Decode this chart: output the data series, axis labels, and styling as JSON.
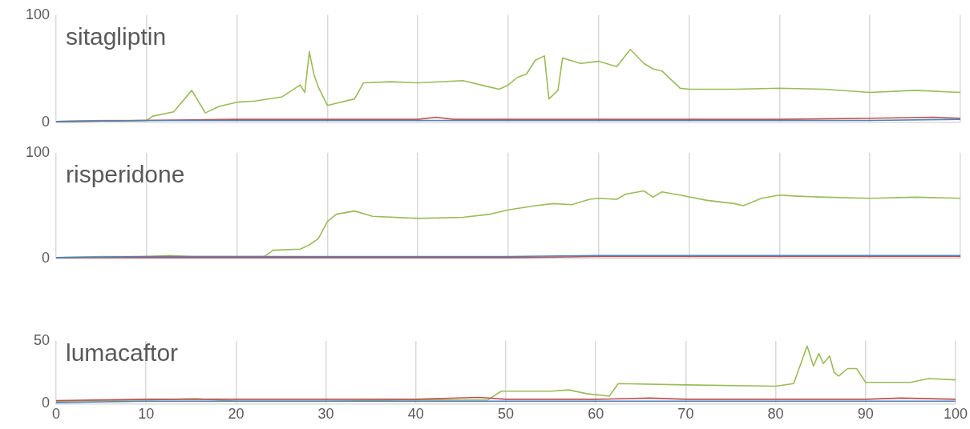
{
  "chart_data": [
    {
      "type": "line",
      "title": "sitagliptin",
      "xlim": [
        0,
        100
      ],
      "xticks": [
        0,
        10,
        20,
        30,
        40,
        50,
        60,
        70,
        80,
        90,
        100
      ],
      "ylim": [
        0,
        100
      ],
      "yticks": [
        0,
        100
      ],
      "grid": "x",
      "legend": false,
      "tick_labels": "y",
      "marker": "none",
      "series": [
        {
          "color": "#4f81bd",
          "x": [
            0,
            10,
            20,
            30,
            40,
            50,
            60,
            70,
            80,
            90,
            100
          ],
          "values": [
            1,
            2,
            2,
            2,
            2,
            2,
            2,
            2,
            2,
            2,
            3
          ]
        },
        {
          "color": "#c0504d",
          "x": [
            0,
            10,
            20,
            30,
            40,
            42,
            44,
            50,
            60,
            70,
            80,
            90,
            97,
            100
          ],
          "values": [
            1,
            2,
            3,
            3,
            3,
            5,
            3,
            3,
            3,
            3,
            3,
            4,
            5,
            4
          ]
        },
        {
          "color": "#9bbb59",
          "x": [
            0,
            5,
            10,
            10.7,
            13,
            15,
            16.5,
            18,
            20,
            22,
            25,
            27,
            27.5,
            28,
            28.5,
            29,
            30,
            31,
            33,
            34,
            37,
            40,
            45,
            48,
            49,
            50,
            51,
            52,
            53,
            54,
            54.5,
            55.5,
            56,
            58,
            60,
            62,
            63.5,
            65,
            66,
            67,
            68,
            69,
            70,
            75,
            80,
            85,
            90,
            95,
            100
          ],
          "values": [
            1,
            2,
            2,
            6,
            10,
            30,
            9,
            15,
            19,
            20,
            24,
            35,
            28,
            66,
            45,
            33,
            16,
            18,
            22,
            37,
            38,
            37,
            39,
            33,
            31,
            35,
            42,
            45,
            58,
            62,
            22,
            30,
            60,
            55,
            57,
            52,
            68,
            55,
            50,
            48,
            40,
            32,
            31,
            31,
            32,
            31,
            28,
            30,
            28
          ]
        }
      ]
    },
    {
      "type": "line",
      "title": "risperidone",
      "xlim": [
        0,
        100
      ],
      "xticks": [
        0,
        10,
        20,
        30,
        40,
        50,
        60,
        70,
        80,
        90,
        100
      ],
      "ylim": [
        0,
        100
      ],
      "yticks": [
        0,
        100
      ],
      "grid": "x",
      "legend": false,
      "tick_labels": "y",
      "marker": "none",
      "series": [
        {
          "color": "#4f81bd",
          "x": [
            0,
            10,
            20,
            30,
            40,
            50,
            60,
            70,
            80,
            90,
            100
          ],
          "values": [
            1,
            2,
            2,
            2,
            2,
            2,
            3,
            3,
            3,
            3,
            3
          ]
        },
        {
          "color": "#c0504d",
          "x": [
            0,
            10,
            20,
            30,
            40,
            50,
            60,
            70,
            80,
            90,
            100
          ],
          "values": [
            1,
            1,
            1,
            1,
            1,
            1,
            2,
            2,
            2,
            2,
            2
          ]
        },
        {
          "color": "#9bbb59",
          "x": [
            0,
            5,
            10,
            12.5,
            15,
            20,
            23,
            24,
            27,
            28,
            29,
            30,
            31,
            33,
            35,
            40,
            45,
            48,
            50,
            53,
            55,
            57,
            59,
            60,
            62,
            63,
            65,
            66,
            67,
            69,
            72,
            75,
            76,
            78,
            80,
            82,
            85,
            90,
            95,
            100
          ],
          "values": [
            1,
            2,
            2,
            3,
            2,
            2,
            2,
            8,
            9,
            13,
            19,
            35,
            42,
            45,
            40,
            38,
            39,
            42,
            46,
            50,
            52,
            51,
            56,
            57,
            56,
            61,
            64,
            58,
            63,
            60,
            55,
            52,
            50,
            57,
            60,
            59,
            58,
            57,
            58,
            57
          ]
        }
      ]
    },
    {
      "type": "line",
      "title": "lumacaftor",
      "xlim": [
        0,
        100
      ],
      "xticks": [
        0,
        10,
        20,
        30,
        40,
        50,
        60,
        70,
        80,
        90,
        100
      ],
      "ylim": [
        0,
        50
      ],
      "yticks": [
        0,
        50
      ],
      "grid": "x",
      "legend": false,
      "marker": "none",
      "series": [
        {
          "color": "#4f81bd",
          "x": [
            0,
            10,
            20,
            30,
            40,
            50,
            60,
            70,
            80,
            90,
            100
          ],
          "values": [
            1,
            2,
            2,
            2,
            2,
            2,
            2,
            2,
            2,
            2,
            2
          ]
        },
        {
          "color": "#c0504d",
          "x": [
            0,
            10,
            20,
            30,
            40,
            47,
            50,
            60,
            66,
            70,
            80,
            90,
            94,
            100
          ],
          "values": [
            2.5,
            3.5,
            3.5,
            3.5,
            3.5,
            5,
            3.5,
            3.5,
            4.5,
            3.5,
            3.5,
            3.5,
            4.5,
            3.5
          ]
        },
        {
          "color": "#9bbb59",
          "x": [
            0,
            10,
            15.5,
            20,
            30,
            40,
            48,
            49.5,
            55,
            57,
            59,
            61.5,
            62.5,
            70,
            80,
            82,
            83.5,
            84.2,
            84.8,
            85.3,
            86,
            86.5,
            87,
            88,
            89,
            90,
            95,
            97,
            100
          ],
          "values": [
            2,
            3,
            4,
            2,
            2,
            3,
            3,
            10,
            10,
            11,
            8,
            6,
            16,
            15,
            14,
            16,
            46,
            30,
            40,
            32,
            38,
            25,
            22,
            28,
            28,
            17,
            17,
            20,
            19
          ]
        }
      ]
    }
  ]
}
